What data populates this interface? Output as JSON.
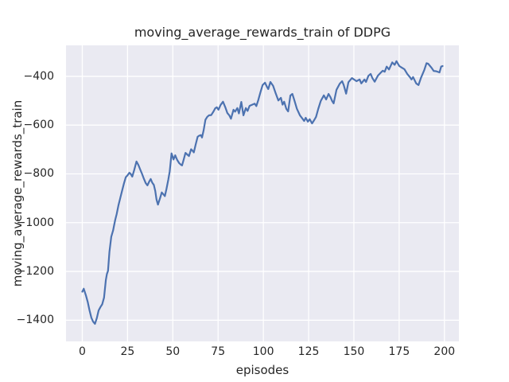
{
  "chart_data": {
    "type": "line",
    "title": "moving_average_rewards_train of DDPG",
    "xlabel": "episodes",
    "ylabel": "moving_average_rewards_train",
    "x_ticks": [
      0,
      25,
      50,
      75,
      100,
      125,
      150,
      175,
      200
    ],
    "x_tick_labels": [
      "0",
      "25",
      "50",
      "75",
      "100",
      "125",
      "150",
      "175",
      "200"
    ],
    "y_ticks": [
      -400,
      -600,
      -800,
      -1000,
      -1200,
      -1400
    ],
    "y_tick_labels": [
      "−400",
      "−600",
      "−800",
      "−1000",
      "−1200",
      "−1400"
    ],
    "xlim": [
      -9,
      208
    ],
    "ylim": [
      -1487,
      -273
    ],
    "grid": true,
    "legend": false,
    "style": {
      "axes_background": "#EAEAF2",
      "grid_color": "#FFFFFF",
      "line_color": "#4C72B0",
      "text_color": "#262626",
      "figure_background": "#FFFFFF"
    },
    "series": [
      {
        "points": [
          [
            0,
            -1283
          ],
          [
            0.8,
            -1271
          ],
          [
            2,
            -1298
          ],
          [
            3,
            -1325
          ],
          [
            4,
            -1360
          ],
          [
            5,
            -1390
          ],
          [
            6,
            -1406
          ],
          [
            7,
            -1415
          ],
          [
            8,
            -1392
          ],
          [
            9,
            -1360
          ],
          [
            10,
            -1346
          ],
          [
            11,
            -1335
          ],
          [
            12,
            -1308
          ],
          [
            13,
            -1235
          ],
          [
            13.6,
            -1211
          ],
          [
            14.2,
            -1198
          ],
          [
            15,
            -1120
          ],
          [
            16,
            -1058
          ],
          [
            17,
            -1032
          ],
          [
            17.6,
            -1009
          ],
          [
            18.2,
            -988
          ],
          [
            19,
            -965
          ],
          [
            20,
            -928
          ],
          [
            21,
            -898
          ],
          [
            22,
            -868
          ],
          [
            23,
            -840
          ],
          [
            24,
            -814
          ],
          [
            25,
            -806
          ],
          [
            26,
            -795
          ],
          [
            26.8,
            -801
          ],
          [
            27.6,
            -811
          ],
          [
            28.6,
            -786
          ],
          [
            29.9,
            -749
          ],
          [
            31,
            -764
          ],
          [
            32,
            -782
          ],
          [
            33,
            -800
          ],
          [
            34,
            -820
          ],
          [
            35,
            -838
          ],
          [
            36,
            -847
          ],
          [
            37,
            -831
          ],
          [
            37.8,
            -821
          ],
          [
            38.6,
            -836
          ],
          [
            39.5,
            -845
          ],
          [
            40.3,
            -870
          ],
          [
            41,
            -905
          ],
          [
            41.8,
            -926
          ],
          [
            43,
            -898
          ],
          [
            43.9,
            -876
          ],
          [
            44.8,
            -884
          ],
          [
            45.6,
            -891
          ],
          [
            46.5,
            -862
          ],
          [
            47.5,
            -824
          ],
          [
            48.3,
            -790
          ],
          [
            49.3,
            -716
          ],
          [
            50.4,
            -741
          ],
          [
            51.3,
            -724
          ],
          [
            52.4,
            -743
          ],
          [
            53.5,
            -756
          ],
          [
            54.5,
            -763
          ],
          [
            55.1,
            -765
          ],
          [
            56,
            -741
          ],
          [
            57,
            -714
          ],
          [
            57.9,
            -720
          ],
          [
            58.9,
            -727
          ],
          [
            60.1,
            -699
          ],
          [
            61,
            -706
          ],
          [
            61.6,
            -712
          ],
          [
            62.6,
            -680
          ],
          [
            63.7,
            -648
          ],
          [
            64.6,
            -643
          ],
          [
            65.5,
            -641
          ],
          [
            66.1,
            -651
          ],
          [
            67,
            -622
          ],
          [
            68,
            -578
          ],
          [
            69,
            -566
          ],
          [
            70,
            -560
          ],
          [
            71.2,
            -559
          ],
          [
            72.5,
            -544
          ],
          [
            73.4,
            -531
          ],
          [
            74.3,
            -527
          ],
          [
            75.2,
            -537
          ],
          [
            76.4,
            -517
          ],
          [
            77.7,
            -504
          ],
          [
            79,
            -527
          ],
          [
            80.1,
            -550
          ],
          [
            81.2,
            -560
          ],
          [
            82.1,
            -574
          ],
          [
            83.5,
            -537
          ],
          [
            84.4,
            -545
          ],
          [
            85.6,
            -530
          ],
          [
            86.5,
            -552
          ],
          [
            87.8,
            -505
          ],
          [
            89,
            -560
          ],
          [
            90.3,
            -530
          ],
          [
            91.3,
            -542
          ],
          [
            92.4,
            -521
          ],
          [
            93.9,
            -516
          ],
          [
            95.2,
            -512
          ],
          [
            96.1,
            -522
          ],
          [
            97.2,
            -497
          ],
          [
            98.4,
            -465
          ],
          [
            99.6,
            -436
          ],
          [
            100.9,
            -426
          ],
          [
            101.9,
            -442
          ],
          [
            102.7,
            -452
          ],
          [
            103.9,
            -423
          ],
          [
            105.4,
            -439
          ],
          [
            106.8,
            -469
          ],
          [
            108.3,
            -499
          ],
          [
            109.7,
            -488
          ],
          [
            110.6,
            -516
          ],
          [
            111.5,
            -504
          ],
          [
            112.7,
            -533
          ],
          [
            113.7,
            -544
          ],
          [
            114.9,
            -479
          ],
          [
            116,
            -472
          ],
          [
            117.2,
            -500
          ],
          [
            118.5,
            -533
          ],
          [
            120.2,
            -560
          ],
          [
            121.4,
            -572
          ],
          [
            122.5,
            -583
          ],
          [
            123.4,
            -570
          ],
          [
            124.6,
            -586
          ],
          [
            125.6,
            -576
          ],
          [
            126.9,
            -593
          ],
          [
            128.2,
            -578
          ],
          [
            129.1,
            -566
          ],
          [
            130.3,
            -534
          ],
          [
            131.7,
            -501
          ],
          [
            133.4,
            -478
          ],
          [
            134.7,
            -495
          ],
          [
            136,
            -472
          ],
          [
            137.1,
            -486
          ],
          [
            138,
            -501
          ],
          [
            138.8,
            -511
          ],
          [
            140.4,
            -455
          ],
          [
            142.2,
            -430
          ],
          [
            143.5,
            -420
          ],
          [
            144.4,
            -436
          ],
          [
            145.7,
            -471
          ],
          [
            147,
            -424
          ],
          [
            148.9,
            -407
          ],
          [
            150.1,
            -413
          ],
          [
            151.4,
            -420
          ],
          [
            153.2,
            -413
          ],
          [
            154.1,
            -429
          ],
          [
            155.8,
            -413
          ],
          [
            156.7,
            -423
          ],
          [
            158,
            -398
          ],
          [
            159.3,
            -390
          ],
          [
            160.2,
            -407
          ],
          [
            161.5,
            -422
          ],
          [
            163.3,
            -397
          ],
          [
            164.6,
            -387
          ],
          [
            165.9,
            -377
          ],
          [
            167,
            -381
          ],
          [
            168.1,
            -360
          ],
          [
            169.4,
            -372
          ],
          [
            171.2,
            -343
          ],
          [
            172.5,
            -353
          ],
          [
            173.5,
            -338
          ],
          [
            175.1,
            -358
          ],
          [
            176.4,
            -364
          ],
          [
            177.9,
            -371
          ],
          [
            179.5,
            -390
          ],
          [
            180.9,
            -403
          ],
          [
            181.8,
            -413
          ],
          [
            182.7,
            -403
          ],
          [
            184.4,
            -429
          ],
          [
            185.7,
            -436
          ],
          [
            187,
            -407
          ],
          [
            188.9,
            -374
          ],
          [
            190.1,
            -346
          ],
          [
            191,
            -348
          ],
          [
            192.8,
            -364
          ],
          [
            194.1,
            -378
          ],
          [
            195.4,
            -379
          ],
          [
            197.3,
            -384
          ],
          [
            198.2,
            -360
          ],
          [
            199,
            -358
          ]
        ]
      }
    ]
  }
}
